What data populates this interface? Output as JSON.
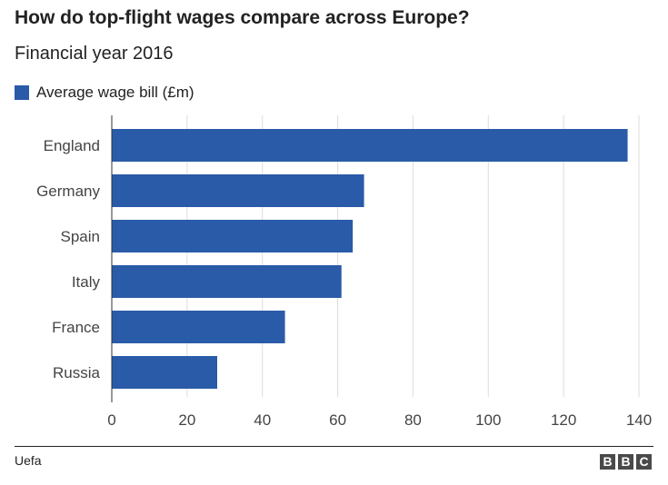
{
  "header": {
    "title": "How do top-flight wages compare across Europe?",
    "subtitle": "Financial year 2016"
  },
  "legend": {
    "label": "Average wage bill (£m)",
    "color": "#2a5ba8"
  },
  "footer": {
    "source": "Uefa",
    "logo": [
      "B",
      "B",
      "C"
    ]
  },
  "colors": {
    "bar": "#2a5ba8",
    "grid": "#dddddd",
    "text": "#222222"
  },
  "chart_data": {
    "type": "bar",
    "orientation": "horizontal",
    "categories": [
      "England",
      "Germany",
      "Spain",
      "Italy",
      "France",
      "Russia"
    ],
    "series": [
      {
        "name": "Average wage bill (£m)",
        "values": [
          137,
          67,
          64,
          61,
          46,
          28
        ]
      }
    ],
    "title": "How do top-flight wages compare across Europe?",
    "subtitle": "Financial year 2016",
    "xlabel": "",
    "ylabel": "",
    "xlim": [
      0,
      140
    ],
    "xticks": [
      0,
      20,
      40,
      60,
      80,
      100,
      120,
      140
    ],
    "grid": true,
    "legend": "top-left"
  }
}
